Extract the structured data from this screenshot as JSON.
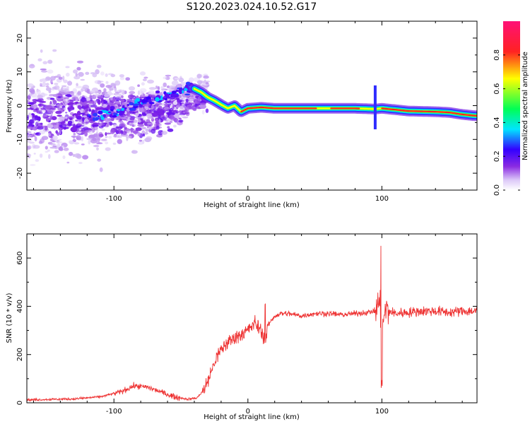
{
  "title": "S120.2023.024.10.52.G17",
  "chart_data": [
    {
      "type": "heatmap",
      "name": "spectrogram",
      "xlabel": "Height of straight line (km)",
      "ylabel": "Frequency (Hz)",
      "xlim": [
        -165,
        171
      ],
      "ylim": [
        -25,
        25
      ],
      "xticks": [
        -100,
        0,
        100
      ],
      "yticks": [
        -20,
        -10,
        0,
        10,
        20
      ],
      "colorbar": {
        "label": "Normalized spectral amplitude",
        "range": [
          0,
          1
        ],
        "ticks": [
          "0.0",
          "0.2",
          "0.4",
          "0.6",
          "0.8"
        ],
        "colors": [
          "#ffffff",
          "#d9c6f6",
          "#8a2be2",
          "#3300ff",
          "#00e5ff",
          "#00ff55",
          "#ffff00",
          "#ff2222",
          "#ff1177"
        ]
      },
      "ridge": {
        "x": [
          -40,
          -35,
          -30,
          -25,
          -20,
          -15,
          -10,
          -5,
          0,
          10,
          20,
          40,
          60,
          80,
          95,
          100,
          110,
          120,
          130,
          140,
          150,
          160,
          170
        ],
        "y": [
          5,
          4,
          2.5,
          1.5,
          0.3,
          -0.8,
          0,
          -1.8,
          -0.8,
          -0.5,
          -0.8,
          -0.8,
          -0.8,
          -0.8,
          -1.0,
          -0.8,
          -1.2,
          -1.6,
          -1.7,
          -1.8,
          -2.0,
          -2.6,
          -3.0
        ]
      }
    },
    {
      "type": "line",
      "name": "snr",
      "xlabel": "Height of straight line (km)",
      "ylabel": "SNR (10 * v/v)",
      "xlim": [
        -165,
        171
      ],
      "ylim": [
        0,
        700
      ],
      "xticks": [
        -100,
        0,
        100
      ],
      "yticks": [
        0,
        200,
        400,
        600
      ],
      "color": "#ee3333",
      "series": [
        {
          "x": [
            -165,
            -150,
            -130,
            -110,
            -95,
            -85,
            -75,
            -65,
            -55,
            -45,
            -38,
            -32,
            -28,
            -24,
            -20,
            -15,
            -10,
            -5,
            0,
            5,
            10,
            13,
            15,
            20,
            25,
            30,
            40,
            50,
            60,
            70,
            80,
            90,
            95,
            98,
            100,
            102,
            105,
            110,
            120,
            130,
            140,
            150,
            160,
            171
          ],
          "y": [
            12,
            14,
            16,
            25,
            45,
            70,
            65,
            45,
            25,
            15,
            20,
            60,
            120,
            180,
            220,
            250,
            270,
            285,
            300,
            330,
            300,
            250,
            320,
            360,
            370,
            370,
            360,
            370,
            370,
            365,
            370,
            375,
            380,
            420,
            250,
            380,
            380,
            370,
            375,
            380,
            380,
            375,
            380,
            380
          ]
        }
      ]
    }
  ]
}
